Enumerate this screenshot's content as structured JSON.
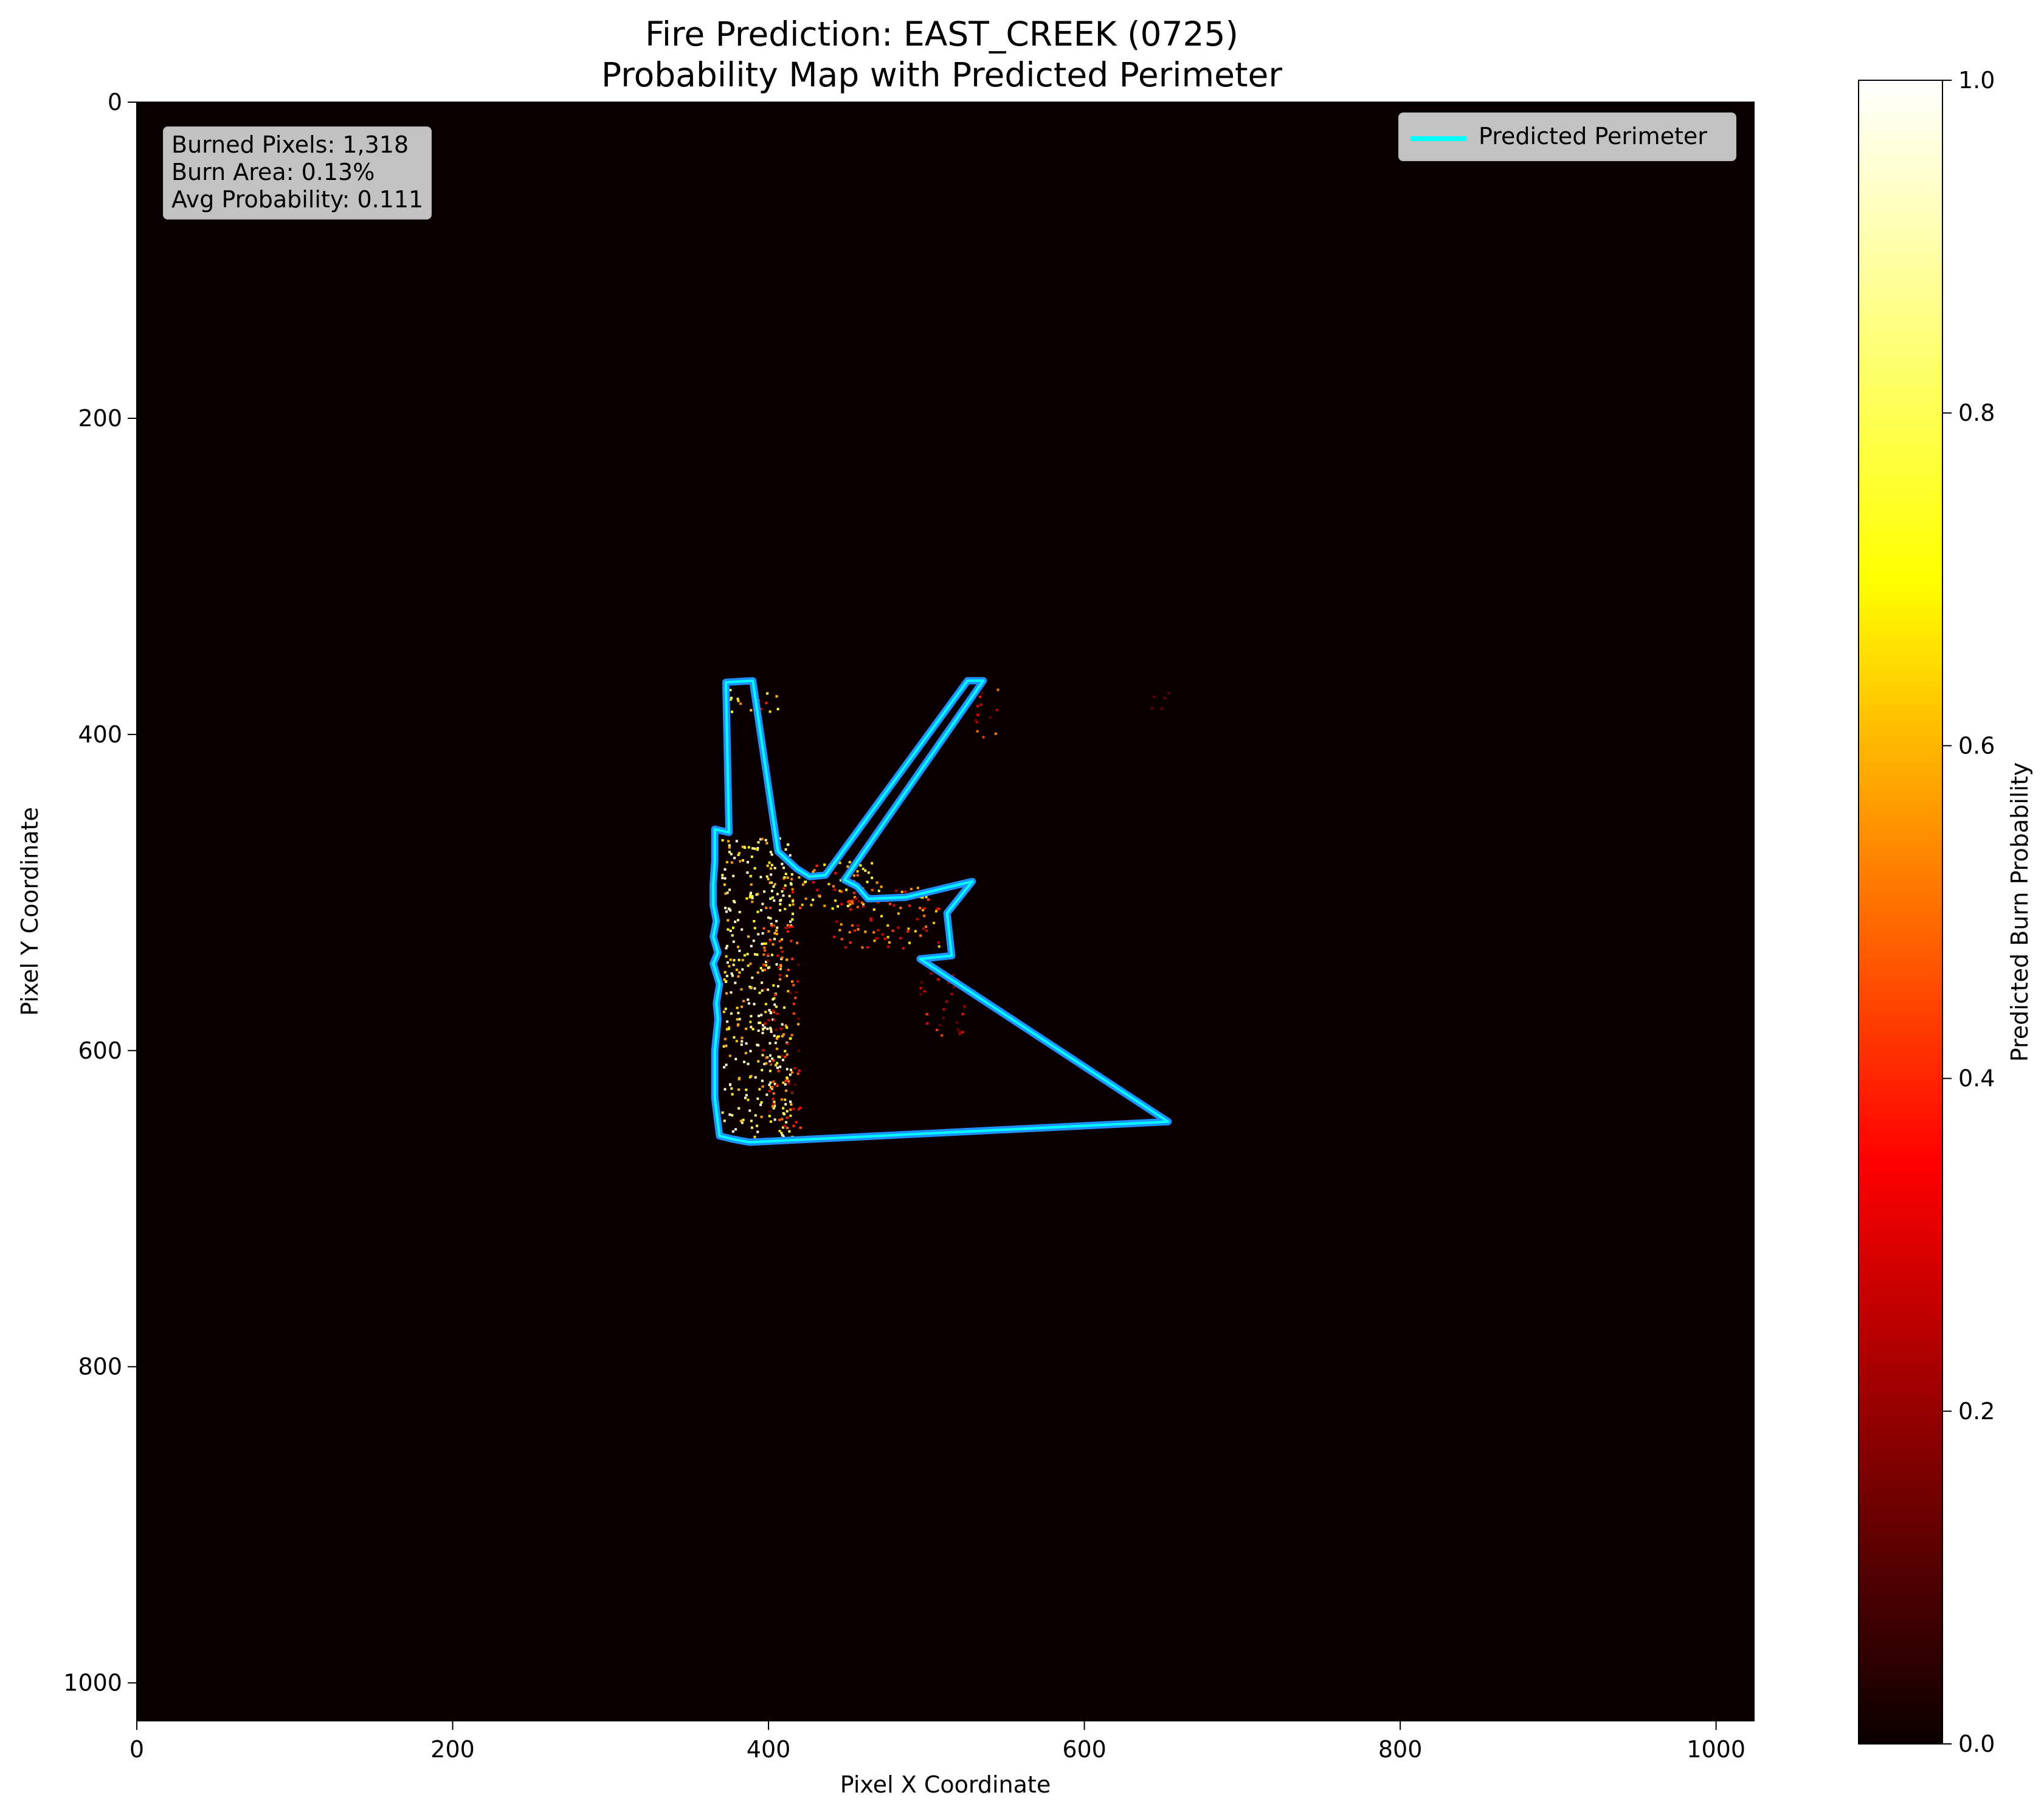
{
  "chart_data": {
    "type": "heatmap",
    "title": "Fire Prediction: EAST_CREEK (0725)",
    "subtitle": "Probability Map with Predicted Perimeter",
    "xlabel": "Pixel X Coordinate",
    "ylabel": "Pixel Y Coordinate",
    "xlim": [
      0,
      1024
    ],
    "ylim": [
      1024,
      0
    ],
    "xticks": [
      0,
      200,
      400,
      600,
      800,
      1000
    ],
    "yticks": [
      0,
      200,
      400,
      600,
      800,
      1000
    ],
    "colorbar": {
      "label": "Predicted Burn Probability",
      "range": [
        0.0,
        1.0
      ],
      "ticks": [
        "0.0",
        "0.2",
        "0.4",
        "0.6",
        "0.8",
        "1.0"
      ],
      "colormap": "hot"
    },
    "legend": {
      "placement": "upper right",
      "entries": [
        {
          "name": "Predicted Perimeter",
          "color": "#00ffff"
        }
      ]
    },
    "stats": [
      "Burned Pixels: 1,318",
      "Burn Area: 0.13%",
      "Avg Probability: 0.111"
    ],
    "perimeter": [
      [
        373,
        367
      ],
      [
        390,
        366
      ],
      [
        406,
        474
      ],
      [
        418,
        485
      ],
      [
        426,
        490
      ],
      [
        436,
        489
      ],
      [
        526,
        366
      ],
      [
        536,
        366
      ],
      [
        448,
        492
      ],
      [
        456,
        496
      ],
      [
        463,
        504
      ],
      [
        487,
        503
      ],
      [
        529,
        493
      ],
      [
        513,
        513
      ],
      [
        516,
        540
      ],
      [
        496,
        542
      ],
      [
        653,
        645
      ],
      [
        388,
        658
      ],
      [
        377,
        656
      ],
      [
        369,
        654
      ],
      [
        366,
        630
      ],
      [
        366,
        600
      ],
      [
        368,
        580
      ],
      [
        367,
        570
      ],
      [
        369,
        558
      ],
      [
        365,
        545
      ],
      [
        368,
        538
      ],
      [
        365,
        528
      ],
      [
        367,
        518
      ],
      [
        365,
        508
      ],
      [
        365,
        495
      ],
      [
        366,
        480
      ],
      [
        366,
        460
      ],
      [
        375,
        462
      ]
    ],
    "hotspots": [
      {
        "x": [
          370,
          415
        ],
        "y": [
          465,
          655
        ],
        "p": 0.8
      },
      {
        "x": [
          400,
          470
        ],
        "y": [
          480,
          510
        ],
        "p": 0.6
      },
      {
        "x": [
          440,
          510
        ],
        "y": [
          495,
          535
        ],
        "p": 0.45
      },
      {
        "x": [
          370,
          410
        ],
        "y": [
          370,
          385
        ],
        "p": 0.55
      },
      {
        "x": [
          395,
          420
        ],
        "y": [
          520,
          650
        ],
        "p": 0.35
      },
      {
        "x": [
          530,
          545
        ],
        "y": [
          370,
          405
        ],
        "p": 0.3
      },
      {
        "x": [
          640,
          655
        ],
        "y": [
          370,
          385
        ],
        "p": 0.25
      },
      {
        "x": [
          495,
          525
        ],
        "y": [
          545,
          590
        ],
        "p": 0.2
      }
    ],
    "grid": false,
    "colors": {
      "background": "#0a0000",
      "perimeter": "#00ffff",
      "perimeter_glow": "#1e90ff"
    }
  }
}
